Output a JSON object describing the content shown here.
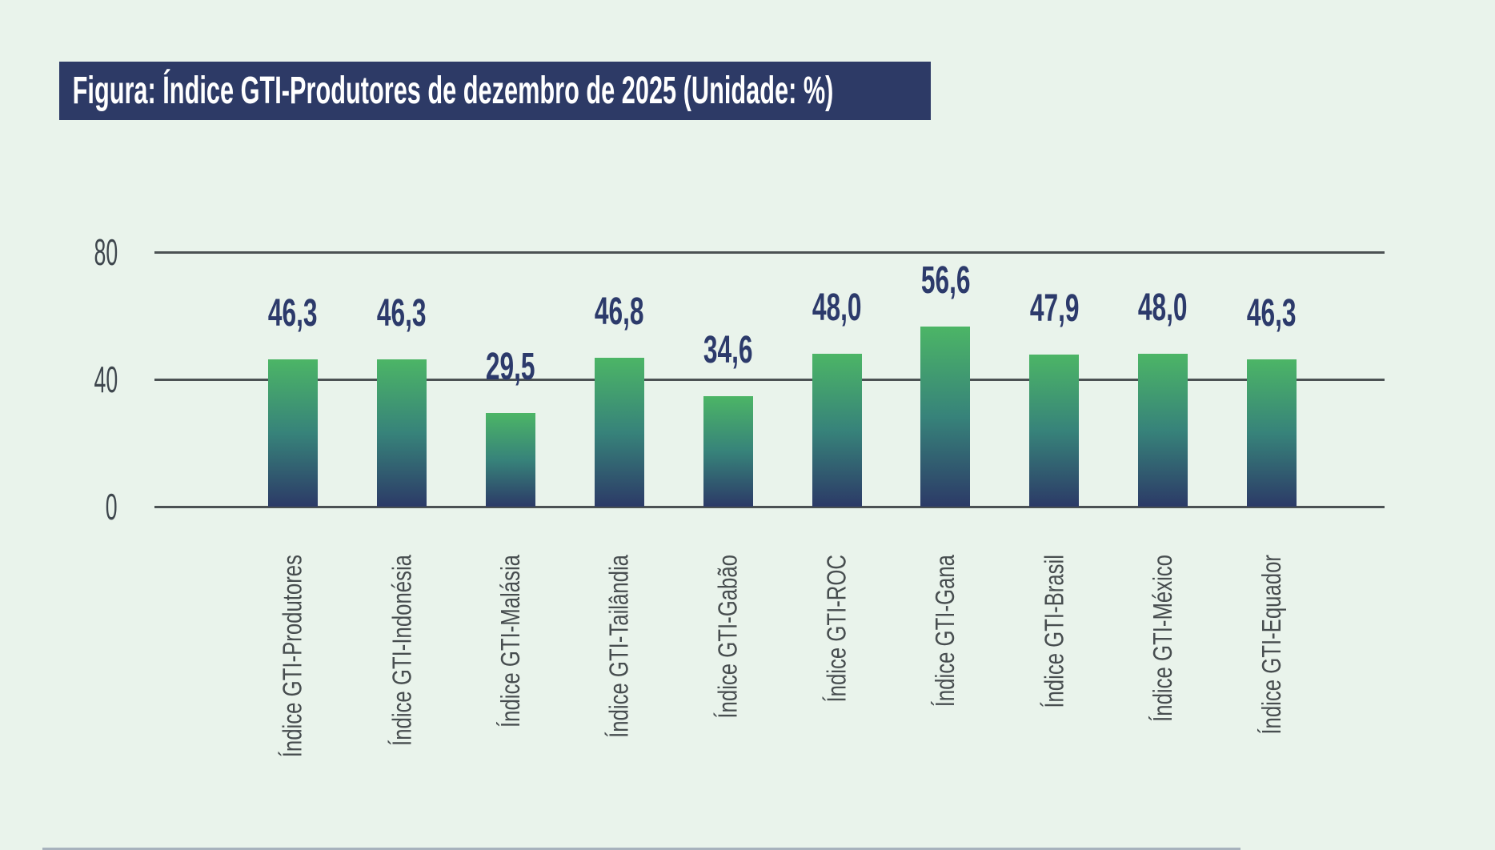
{
  "page": {
    "background_color": "#e9f3eb"
  },
  "header": {
    "title": "Figura: Índice GTI-Produtores de dezembro de 2025 (Unidade: %)",
    "banner_color": "#2d3a66",
    "text_color": "#ffffff"
  },
  "chart_data": {
    "type": "bar",
    "title": "Figura: Índice GTI-Produtores de dezembro de 2025 (Unidade: %)",
    "unit": "%",
    "categories": [
      "Índice GTI-Produtores",
      "Índice GTI-Indonésia",
      "Índice GTI-Malásia",
      "Índice GTI-Tailândia",
      "Índice GTI-Gabão",
      "Índice GTI-ROC",
      "Índice GTI-Gana",
      "Índice GTI-Brasil",
      "Índice GTI-México",
      "Índice GTI-Equador"
    ],
    "values": [
      46.3,
      46.3,
      29.5,
      46.8,
      34.6,
      48.0,
      56.6,
      47.9,
      48.0,
      46.3
    ],
    "value_labels": [
      "46,3",
      "46,3",
      "29,5",
      "46,8",
      "34,6",
      "48,0",
      "56,6",
      "47,9",
      "48,0",
      "46,3"
    ],
    "xlabel": "",
    "ylabel": "",
    "ylim": [
      0,
      80
    ],
    "yticks": [
      0,
      40,
      80
    ],
    "grid": true,
    "legend_position": "none",
    "bar_color_top": "#4cb566",
    "bar_color_mid": "#37837a",
    "bar_color_bottom": "#2c3a67",
    "gridline_color": "#4b5153",
    "tick_label_color": "#3e464d",
    "value_label_color": "#2c3a6b",
    "category_label_color": "#474d4f"
  }
}
